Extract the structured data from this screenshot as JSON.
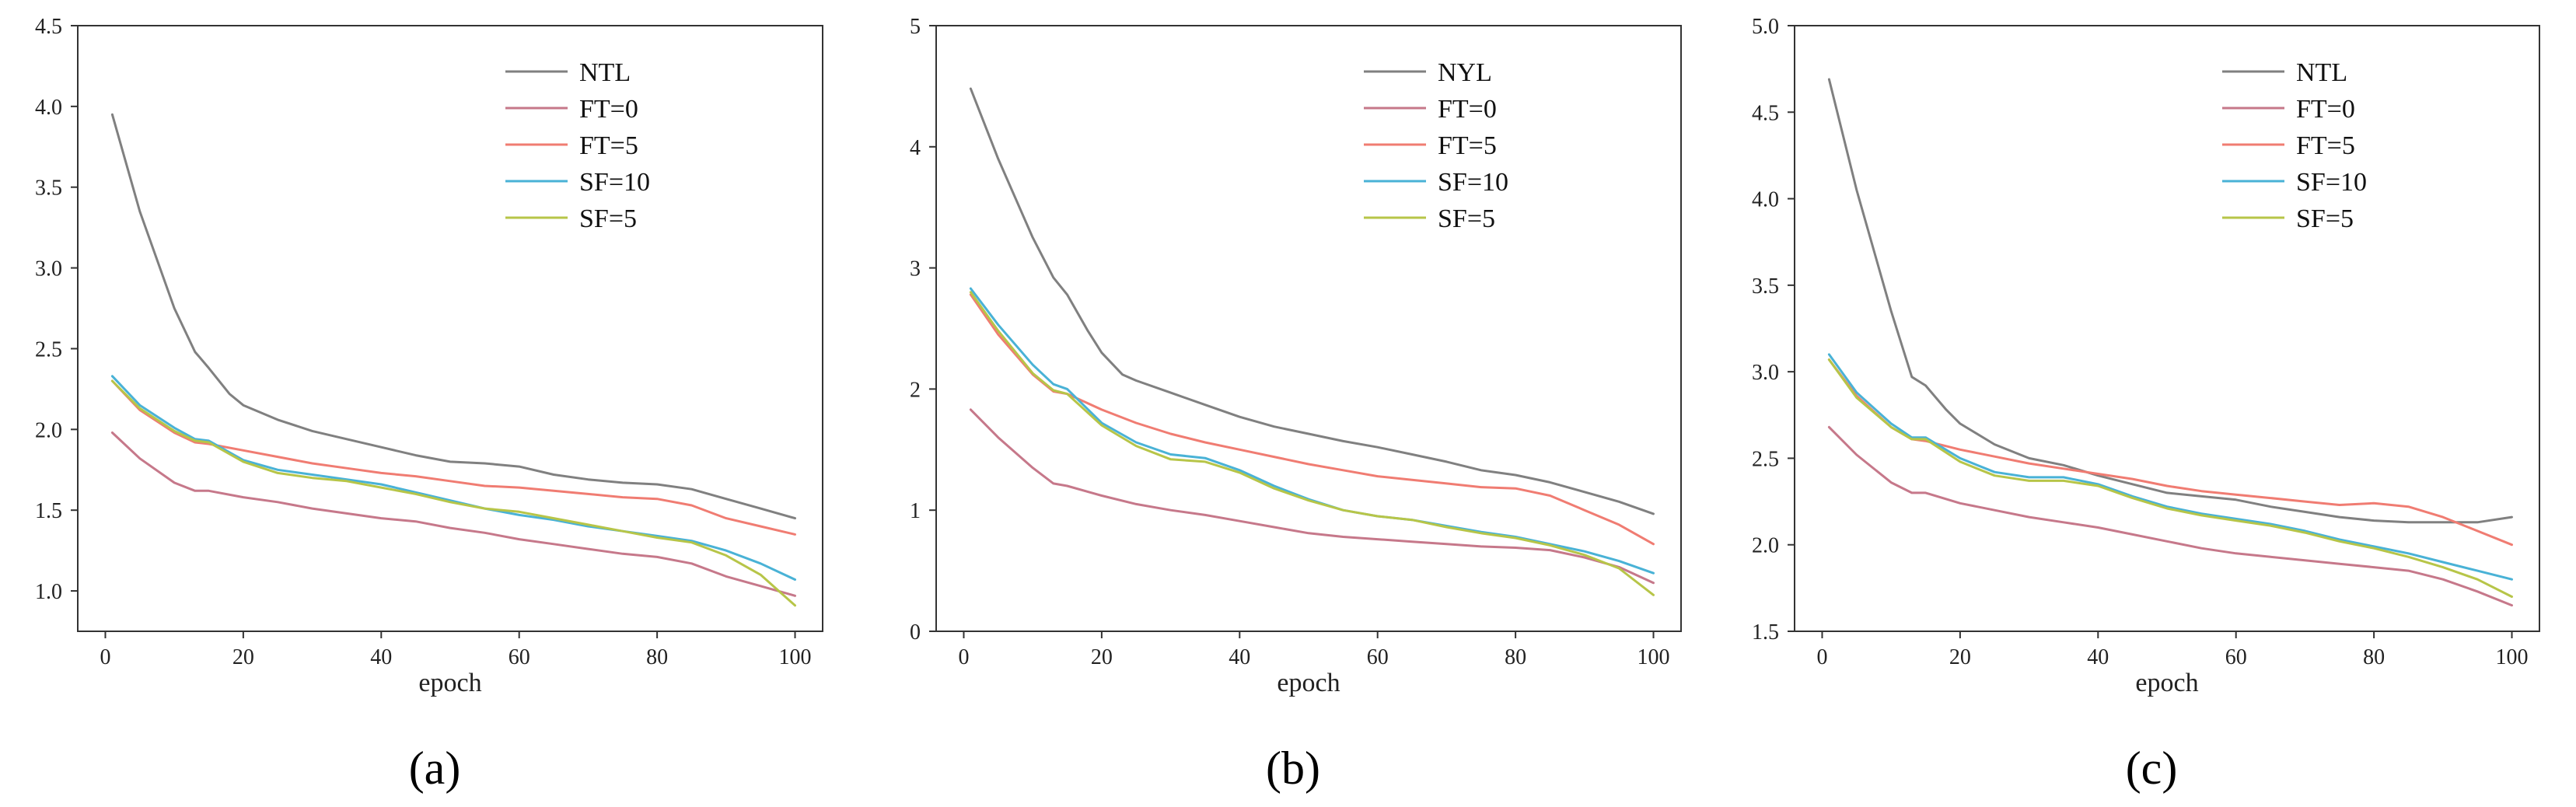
{
  "chart_data": [
    {
      "type": "line",
      "panel_label": "(a)",
      "xlabel": "epoch",
      "ylabel": "",
      "xlim": [
        -4,
        104
      ],
      "ylim": [
        0.75,
        4.5
      ],
      "xticks": [
        {
          "v": 0,
          "label": "0"
        },
        {
          "v": 20,
          "label": "20"
        },
        {
          "v": 40,
          "label": "40"
        },
        {
          "v": 60,
          "label": "60"
        },
        {
          "v": 80,
          "label": "80"
        },
        {
          "v": 100,
          "label": "100"
        }
      ],
      "yticks": [
        {
          "v": 1.0,
          "label": "1.0"
        },
        {
          "v": 1.5,
          "label": "1.5"
        },
        {
          "v": 2.0,
          "label": "2.0"
        },
        {
          "v": 2.5,
          "label": "2.5"
        },
        {
          "v": 3.0,
          "label": "3.0"
        },
        {
          "v": 3.5,
          "label": "3.5"
        },
        {
          "v": 4.0,
          "label": "4.0"
        },
        {
          "v": 4.5,
          "label": "4.5"
        }
      ],
      "legend_position": "top-right",
      "series": [
        {
          "name": "NTL",
          "color": "#808080",
          "x": [
            1,
            5,
            10,
            13,
            15,
            18,
            20,
            25,
            30,
            35,
            40,
            45,
            50,
            55,
            60,
            65,
            70,
            75,
            80,
            85,
            90,
            95,
            100
          ],
          "y": [
            3.95,
            3.35,
            2.75,
            2.48,
            2.38,
            2.22,
            2.15,
            2.06,
            1.99,
            1.94,
            1.89,
            1.84,
            1.8,
            1.79,
            1.77,
            1.72,
            1.69,
            1.67,
            1.66,
            1.63,
            1.57,
            1.51,
            1.45
          ]
        },
        {
          "name": "FT=0",
          "color": "#c6788a",
          "x": [
            1,
            5,
            10,
            13,
            15,
            20,
            25,
            30,
            35,
            40,
            45,
            50,
            55,
            60,
            65,
            70,
            75,
            80,
            85,
            90,
            95,
            100
          ],
          "y": [
            1.98,
            1.82,
            1.67,
            1.62,
            1.62,
            1.58,
            1.55,
            1.51,
            1.48,
            1.45,
            1.43,
            1.39,
            1.36,
            1.32,
            1.29,
            1.26,
            1.23,
            1.21,
            1.17,
            1.09,
            1.03,
            0.97
          ]
        },
        {
          "name": "FT=5",
          "color": "#f07c72",
          "x": [
            1,
            5,
            10,
            13,
            15,
            20,
            25,
            30,
            35,
            40,
            45,
            50,
            55,
            60,
            65,
            70,
            75,
            80,
            85,
            90,
            95,
            100
          ],
          "y": [
            2.3,
            2.12,
            1.98,
            1.92,
            1.91,
            1.87,
            1.83,
            1.79,
            1.76,
            1.73,
            1.71,
            1.68,
            1.65,
            1.64,
            1.62,
            1.6,
            1.58,
            1.57,
            1.53,
            1.45,
            1.4,
            1.35
          ]
        },
        {
          "name": "SF=10",
          "color": "#49b2d6",
          "x": [
            1,
            5,
            10,
            13,
            15,
            20,
            25,
            30,
            35,
            40,
            45,
            50,
            55,
            60,
            65,
            70,
            75,
            80,
            85,
            90,
            95,
            100
          ],
          "y": [
            2.33,
            2.15,
            2.01,
            1.94,
            1.93,
            1.81,
            1.75,
            1.72,
            1.69,
            1.66,
            1.61,
            1.56,
            1.51,
            1.47,
            1.44,
            1.4,
            1.37,
            1.34,
            1.31,
            1.25,
            1.17,
            1.07
          ]
        },
        {
          "name": "SF=5",
          "color": "#b7c548",
          "x": [
            1,
            5,
            10,
            13,
            15,
            20,
            25,
            30,
            35,
            40,
            45,
            50,
            55,
            60,
            65,
            70,
            75,
            80,
            85,
            90,
            95,
            100
          ],
          "y": [
            2.3,
            2.13,
            1.99,
            1.93,
            1.92,
            1.8,
            1.73,
            1.7,
            1.68,
            1.64,
            1.6,
            1.55,
            1.51,
            1.49,
            1.45,
            1.41,
            1.37,
            1.33,
            1.3,
            1.22,
            1.1,
            0.91
          ]
        }
      ]
    },
    {
      "type": "line",
      "panel_label": "(b)",
      "xlabel": "epoch",
      "ylabel": "",
      "xlim": [
        -4,
        104
      ],
      "ylim": [
        0,
        5
      ],
      "xticks": [
        {
          "v": 0,
          "label": "0"
        },
        {
          "v": 20,
          "label": "20"
        },
        {
          "v": 40,
          "label": "40"
        },
        {
          "v": 60,
          "label": "60"
        },
        {
          "v": 80,
          "label": "80"
        },
        {
          "v": 100,
          "label": "100"
        }
      ],
      "yticks": [
        {
          "v": 0,
          "label": "0"
        },
        {
          "v": 1,
          "label": "1"
        },
        {
          "v": 2,
          "label": "2"
        },
        {
          "v": 3,
          "label": "3"
        },
        {
          "v": 4,
          "label": "4"
        },
        {
          "v": 5,
          "label": "5"
        }
      ],
      "legend_position": "top-right",
      "series": [
        {
          "name": "NYL",
          "color": "#808080",
          "x": [
            1,
            5,
            10,
            13,
            15,
            18,
            20,
            23,
            25,
            30,
            35,
            40,
            45,
            50,
            55,
            60,
            65,
            70,
            75,
            80,
            85,
            90,
            95,
            100
          ],
          "y": [
            4.48,
            3.9,
            3.25,
            2.92,
            2.78,
            2.48,
            2.3,
            2.12,
            2.07,
            1.97,
            1.87,
            1.77,
            1.69,
            1.63,
            1.57,
            1.52,
            1.46,
            1.4,
            1.33,
            1.29,
            1.23,
            1.15,
            1.07,
            0.97
          ]
        },
        {
          "name": "FT=0",
          "color": "#c6788a",
          "x": [
            1,
            5,
            10,
            13,
            15,
            20,
            25,
            30,
            35,
            40,
            45,
            50,
            55,
            60,
            65,
            70,
            75,
            80,
            85,
            90,
            95,
            100
          ],
          "y": [
            1.83,
            1.6,
            1.35,
            1.22,
            1.2,
            1.12,
            1.05,
            1.0,
            0.96,
            0.91,
            0.86,
            0.81,
            0.78,
            0.76,
            0.74,
            0.72,
            0.7,
            0.69,
            0.67,
            0.61,
            0.53,
            0.4
          ]
        },
        {
          "name": "FT=5",
          "color": "#f07c72",
          "x": [
            1,
            5,
            10,
            13,
            15,
            20,
            25,
            30,
            35,
            40,
            45,
            50,
            55,
            60,
            65,
            70,
            75,
            80,
            85,
            90,
            95,
            100
          ],
          "y": [
            2.78,
            2.45,
            2.12,
            1.98,
            1.96,
            1.83,
            1.72,
            1.63,
            1.56,
            1.5,
            1.44,
            1.38,
            1.33,
            1.28,
            1.25,
            1.22,
            1.19,
            1.18,
            1.12,
            1.0,
            0.88,
            0.72
          ]
        },
        {
          "name": "SF=10",
          "color": "#49b2d6",
          "x": [
            1,
            5,
            10,
            13,
            15,
            20,
            25,
            30,
            35,
            40,
            45,
            50,
            55,
            60,
            65,
            70,
            75,
            80,
            85,
            90,
            95,
            100
          ],
          "y": [
            2.83,
            2.53,
            2.2,
            2.04,
            2.0,
            1.72,
            1.56,
            1.46,
            1.43,
            1.33,
            1.2,
            1.09,
            1.0,
            0.95,
            0.92,
            0.87,
            0.82,
            0.78,
            0.72,
            0.66,
            0.58,
            0.48
          ]
        },
        {
          "name": "SF=5",
          "color": "#b7c548",
          "x": [
            1,
            5,
            10,
            13,
            15,
            20,
            25,
            30,
            35,
            40,
            45,
            50,
            55,
            60,
            65,
            70,
            75,
            80,
            85,
            90,
            95,
            100
          ],
          "y": [
            2.8,
            2.48,
            2.13,
            1.99,
            1.96,
            1.7,
            1.53,
            1.42,
            1.4,
            1.31,
            1.18,
            1.08,
            1.0,
            0.95,
            0.92,
            0.86,
            0.81,
            0.77,
            0.71,
            0.63,
            0.52,
            0.3
          ]
        }
      ]
    },
    {
      "type": "line",
      "panel_label": "(c)",
      "xlabel": "epoch",
      "ylabel": "",
      "xlim": [
        -4,
        104
      ],
      "ylim": [
        1.5,
        5.0
      ],
      "xticks": [
        {
          "v": 0,
          "label": "0"
        },
        {
          "v": 20,
          "label": "20"
        },
        {
          "v": 40,
          "label": "40"
        },
        {
          "v": 60,
          "label": "60"
        },
        {
          "v": 80,
          "label": "80"
        },
        {
          "v": 100,
          "label": "100"
        }
      ],
      "yticks": [
        {
          "v": 1.5,
          "label": "1.5"
        },
        {
          "v": 2.0,
          "label": "2.0"
        },
        {
          "v": 2.5,
          "label": "2.5"
        },
        {
          "v": 3.0,
          "label": "3.0"
        },
        {
          "v": 3.5,
          "label": "3.5"
        },
        {
          "v": 4.0,
          "label": "4.0"
        },
        {
          "v": 4.5,
          "label": "4.5"
        },
        {
          "v": 5.0,
          "label": "5.0"
        }
      ],
      "legend_position": "top-right",
      "series": [
        {
          "name": "NTL",
          "color": "#808080",
          "x": [
            1,
            5,
            10,
            13,
            15,
            18,
            20,
            25,
            30,
            35,
            40,
            45,
            50,
            55,
            60,
            65,
            70,
            75,
            80,
            85,
            90,
            95,
            100
          ],
          "y": [
            4.69,
            4.05,
            3.35,
            2.97,
            2.92,
            2.78,
            2.7,
            2.58,
            2.5,
            2.46,
            2.4,
            2.35,
            2.3,
            2.28,
            2.26,
            2.22,
            2.19,
            2.16,
            2.14,
            2.13,
            2.13,
            2.13,
            2.16
          ]
        },
        {
          "name": "FT=0",
          "color": "#c6788a",
          "x": [
            1,
            5,
            10,
            13,
            15,
            20,
            25,
            30,
            35,
            40,
            45,
            50,
            55,
            60,
            65,
            70,
            75,
            80,
            85,
            90,
            95,
            100
          ],
          "y": [
            2.68,
            2.52,
            2.36,
            2.3,
            2.3,
            2.24,
            2.2,
            2.16,
            2.13,
            2.1,
            2.06,
            2.02,
            1.98,
            1.95,
            1.93,
            1.91,
            1.89,
            1.87,
            1.85,
            1.8,
            1.73,
            1.65
          ]
        },
        {
          "name": "FT=5",
          "color": "#f07c72",
          "x": [
            1,
            5,
            10,
            13,
            15,
            20,
            25,
            30,
            35,
            40,
            45,
            50,
            55,
            60,
            65,
            70,
            75,
            80,
            85,
            90,
            95,
            100
          ],
          "y": [
            3.07,
            2.86,
            2.68,
            2.61,
            2.6,
            2.55,
            2.51,
            2.47,
            2.44,
            2.41,
            2.38,
            2.34,
            2.31,
            2.29,
            2.27,
            2.25,
            2.23,
            2.24,
            2.22,
            2.16,
            2.08,
            2.0
          ]
        },
        {
          "name": "SF=10",
          "color": "#49b2d6",
          "x": [
            1,
            5,
            10,
            13,
            15,
            20,
            25,
            30,
            35,
            40,
            45,
            50,
            55,
            60,
            65,
            70,
            75,
            80,
            85,
            90,
            95,
            100
          ],
          "y": [
            3.1,
            2.88,
            2.7,
            2.62,
            2.62,
            2.5,
            2.42,
            2.39,
            2.39,
            2.35,
            2.28,
            2.22,
            2.18,
            2.15,
            2.12,
            2.08,
            2.03,
            1.99,
            1.95,
            1.9,
            1.85,
            1.8
          ]
        },
        {
          "name": "SF=5",
          "color": "#b7c548",
          "x": [
            1,
            5,
            10,
            13,
            15,
            20,
            25,
            30,
            35,
            40,
            45,
            50,
            55,
            60,
            65,
            70,
            75,
            80,
            85,
            90,
            95,
            100
          ],
          "y": [
            3.07,
            2.85,
            2.68,
            2.61,
            2.61,
            2.48,
            2.4,
            2.37,
            2.37,
            2.34,
            2.27,
            2.21,
            2.17,
            2.14,
            2.11,
            2.07,
            2.02,
            1.98,
            1.93,
            1.87,
            1.8,
            1.7
          ]
        }
      ]
    }
  ]
}
